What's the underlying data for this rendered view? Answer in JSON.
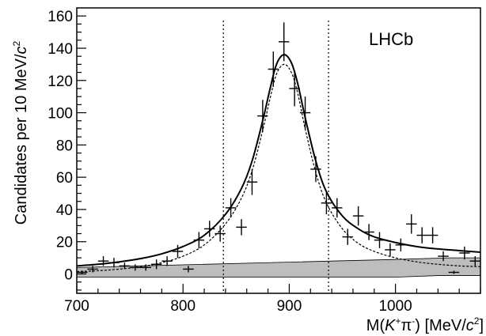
{
  "chart_data": {
    "type": "scatter",
    "annotation": "LHCb",
    "xlabel": {
      "pre": "M(",
      "var": "K",
      "sup1": "+",
      "mid": "π",
      "sup2": "-",
      "post": ") [MeV/",
      "c": "c",
      "sup3": "2",
      "end": "]"
    },
    "ylabel": {
      "pre": "Candidates per 10 MeV/",
      "c": "c",
      "sup": "2"
    },
    "xlim": [
      700,
      1080
    ],
    "ylim": [
      -12,
      165
    ],
    "xticks": [
      700,
      800,
      900,
      1000
    ],
    "yticks": [
      0,
      20,
      40,
      60,
      80,
      100,
      120,
      140,
      160
    ],
    "grid": false,
    "legend": "none",
    "cut_lines": [
      838,
      937
    ],
    "series": [
      {
        "x": [
          705,
          715,
          725,
          735,
          745,
          755,
          765,
          775,
          785,
          795,
          805,
          815,
          825,
          835,
          845,
          855,
          865,
          875,
          885,
          895,
          905,
          915,
          925,
          935,
          945,
          955,
          965,
          975,
          985,
          995,
          1005,
          1015,
          1025,
          1035,
          1045,
          1055,
          1065,
          1075
        ],
        "y": [
          1,
          3,
          8,
          7,
          5,
          4,
          4,
          6,
          8,
          14,
          3,
          21,
          28,
          25,
          41,
          29,
          57,
          98,
          127,
          144,
          115,
          100,
          65,
          44,
          41,
          23,
          36,
          26,
          21,
          15,
          18,
          31,
          24,
          24,
          11,
          1,
          13,
          8
        ],
        "yerr": [
          1,
          2,
          3,
          3,
          2,
          2,
          2,
          3,
          3,
          4,
          2,
          5,
          5,
          5,
          6,
          5,
          8,
          10,
          11,
          12,
          11,
          10,
          8,
          7,
          6,
          5,
          6,
          5,
          5,
          4,
          4,
          6,
          5,
          5,
          3,
          1,
          4,
          3
        ]
      }
    ],
    "total_fit": [
      [
        700,
        5
      ],
      [
        720,
        6
      ],
      [
        740,
        7.5
      ],
      [
        760,
        9.5
      ],
      [
        780,
        12.5
      ],
      [
        800,
        17
      ],
      [
        820,
        24
      ],
      [
        840,
        37
      ],
      [
        855,
        53
      ],
      [
        865,
        70
      ],
      [
        875,
        95
      ],
      [
        882,
        115
      ],
      [
        888,
        130
      ],
      [
        895,
        136
      ],
      [
        902,
        131
      ],
      [
        908,
        118
      ],
      [
        915,
        97
      ],
      [
        925,
        70
      ],
      [
        935,
        51
      ],
      [
        950,
        36
      ],
      [
        965,
        28
      ],
      [
        980,
        23
      ],
      [
        1000,
        19.5
      ],
      [
        1020,
        17
      ],
      [
        1040,
        15.5
      ],
      [
        1060,
        14.5
      ],
      [
        1080,
        13.5
      ]
    ],
    "signal_fit": [
      [
        700,
        1.5
      ],
      [
        720,
        2
      ],
      [
        740,
        3
      ],
      [
        760,
        4.5
      ],
      [
        780,
        7
      ],
      [
        800,
        11
      ],
      [
        820,
        18
      ],
      [
        840,
        31
      ],
      [
        855,
        47
      ],
      [
        865,
        64
      ],
      [
        875,
        89
      ],
      [
        882,
        109
      ],
      [
        888,
        124
      ],
      [
        895,
        130
      ],
      [
        902,
        125
      ],
      [
        908,
        112
      ],
      [
        915,
        90
      ],
      [
        925,
        63
      ],
      [
        935,
        44
      ],
      [
        950,
        28
      ],
      [
        965,
        19
      ],
      [
        980,
        14
      ],
      [
        1000,
        10
      ],
      [
        1020,
        7.5
      ],
      [
        1040,
        6
      ],
      [
        1060,
        5
      ],
      [
        1080,
        4.5
      ]
    ],
    "background_band": {
      "upper": [
        [
          700,
          4
        ],
        [
          760,
          5
        ],
        [
          820,
          6
        ],
        [
          880,
          7
        ],
        [
          940,
          8
        ],
        [
          1000,
          9
        ],
        [
          1050,
          10
        ],
        [
          1080,
          10
        ]
      ],
      "lower": [
        [
          700,
          -2
        ],
        [
          760,
          -2
        ],
        [
          820,
          -2
        ],
        [
          880,
          -2
        ],
        [
          940,
          -2
        ],
        [
          1000,
          -2
        ],
        [
          1040,
          -1
        ],
        [
          1080,
          -1
        ]
      ]
    },
    "colors": {
      "band_fill": "#bdbdbd",
      "ink": "#000000"
    }
  }
}
